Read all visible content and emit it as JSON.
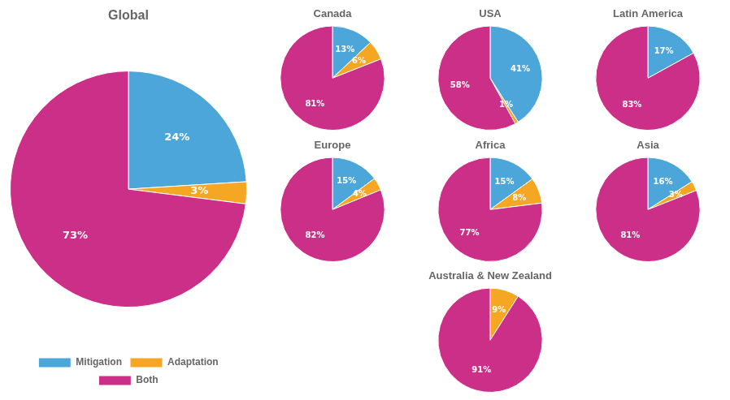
{
  "chart_data": [
    {
      "type": "pie",
      "title": "Global",
      "categories": [
        "Mitigation",
        "Adaptation",
        "Both"
      ],
      "values": [
        24,
        3,
        73
      ],
      "value_labels": [
        "24%",
        "3%",
        "73%"
      ],
      "colors": [
        "#4da6d9",
        "#f5a623",
        "#cc2f87"
      ],
      "data_labels": true,
      "legend": "bottom"
    },
    {
      "type": "pie",
      "title": "Canada",
      "categories": [
        "Mitigation",
        "Adaptation",
        "Both"
      ],
      "values": [
        13,
        6,
        81
      ],
      "value_labels": [
        "13%",
        "6%",
        "81%"
      ],
      "colors": [
        "#4da6d9",
        "#f5a623",
        "#cc2f87"
      ],
      "data_labels": true
    },
    {
      "type": "pie",
      "title": "USA",
      "categories": [
        "Mitigation",
        "Adaptation",
        "Both"
      ],
      "values": [
        41,
        1,
        58
      ],
      "value_labels": [
        "41%",
        "1%",
        "58%"
      ],
      "colors": [
        "#4da6d9",
        "#f5a623",
        "#cc2f87"
      ],
      "data_labels": true
    },
    {
      "type": "pie",
      "title": "Latin America",
      "categories": [
        "Mitigation",
        "Both"
      ],
      "values": [
        17,
        83
      ],
      "value_labels": [
        "17%",
        "83%"
      ],
      "colors": [
        "#4da6d9",
        "#cc2f87"
      ],
      "data_labels": true
    },
    {
      "type": "pie",
      "title": "Europe",
      "categories": [
        "Mitigation",
        "Adaptation",
        "Both"
      ],
      "values": [
        15,
        4,
        82
      ],
      "value_labels": [
        "15%",
        "4%",
        "82%"
      ],
      "colors": [
        "#4da6d9",
        "#f5a623",
        "#cc2f87"
      ],
      "data_labels": true
    },
    {
      "type": "pie",
      "title": "Africa",
      "categories": [
        "Mitigation",
        "Adaptation",
        "Both"
      ],
      "values": [
        15,
        8,
        77
      ],
      "value_labels": [
        "15%",
        "8%",
        "77%"
      ],
      "colors": [
        "#4da6d9",
        "#f5a623",
        "#cc2f87"
      ],
      "data_labels": true
    },
    {
      "type": "pie",
      "title": "Asia",
      "categories": [
        "Mitigation",
        "Adaptation",
        "Both"
      ],
      "values": [
        16,
        3,
        81
      ],
      "value_labels": [
        "16%",
        "3%",
        "81%"
      ],
      "colors": [
        "#4da6d9",
        "#f5a623",
        "#cc2f87"
      ],
      "data_labels": true
    },
    {
      "type": "pie",
      "title": "Australia & New Zealand",
      "categories": [
        "Adaptation",
        "Both"
      ],
      "values": [
        9,
        91
      ],
      "value_labels": [
        "9%",
        "91%"
      ],
      "colors": [
        "#f5a623",
        "#cc2f87"
      ],
      "data_labels": true
    }
  ]
}
